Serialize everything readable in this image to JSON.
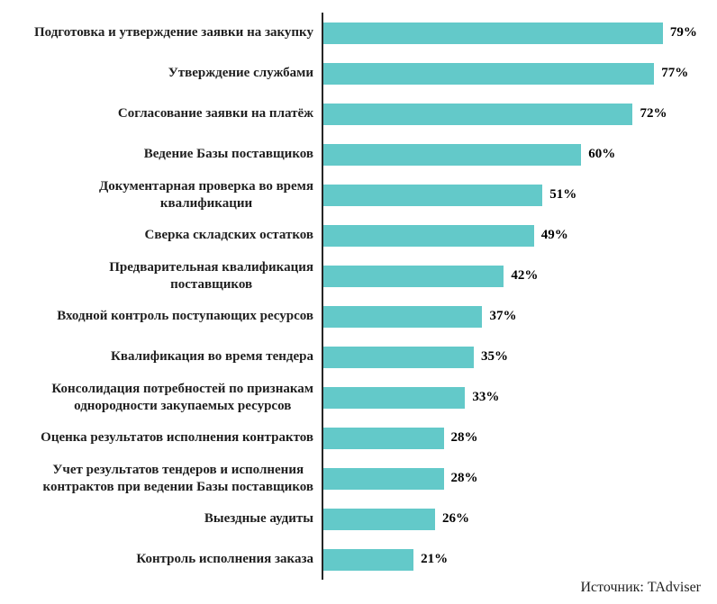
{
  "chart_data": {
    "type": "bar",
    "orientation": "horizontal",
    "title": "",
    "xlabel": "",
    "ylabel": "",
    "xlim": [
      0,
      92
    ],
    "grid": false,
    "legend": false,
    "bar_color": "#63C9C9",
    "text_color": "#1F1F1F",
    "axis_color": "#262626",
    "categories": [
      "Подготовка и утверждение заявки на закупку",
      "Утверждение службами",
      "Согласование заявки на платёж",
      "Ведение Базы поставщиков",
      "Документарная проверка во время квалификации",
      "Сверка складских остатков",
      "Предварительная квалификация поставщиков",
      "Входной контроль поступающих ресурсов",
      "Квалификация во время тендера",
      "Консолидация потребностей по признакам однородности закупаемых ресурсов",
      "Оценка результатов исполнения контрактов",
      "Учет результатов тендеров и исполнения контрактов при ведении Базы поставщиков",
      "Выездные аудиты",
      "Контроль исполнения заказа"
    ],
    "categories_wrapped": [
      "Подготовка и утверждение заявки на закупку",
      "Утверждение службами",
      "Согласование заявки на платёж",
      "Ведение Базы поставщиков",
      "Документарная проверка во время\nквалификации",
      "Сверка складских остатков",
      "Предварительная квалификация\nпоставщиков",
      "Входной контроль поступающих ресурсов",
      "Квалификация во время тендера",
      "Консолидация потребностей по признакам\nоднородности закупаемых ресурсов",
      "Оценка результатов исполнения контрактов",
      "Учет результатов тендеров и исполнения\nконтрактов при ведении Базы поставщиков",
      "Выездные аудиты",
      "Контроль исполнения заказа"
    ],
    "values": [
      79,
      77,
      72,
      60,
      51,
      49,
      42,
      37,
      35,
      33,
      28,
      28,
      26,
      21
    ],
    "value_labels": [
      "79%",
      "77%",
      "72%",
      "60%",
      "51%",
      "49%",
      "42%",
      "37%",
      "35%",
      "33%",
      "28%",
      "28%",
      "26%",
      "21%"
    ],
    "source": "Источник: TAdviser"
  }
}
